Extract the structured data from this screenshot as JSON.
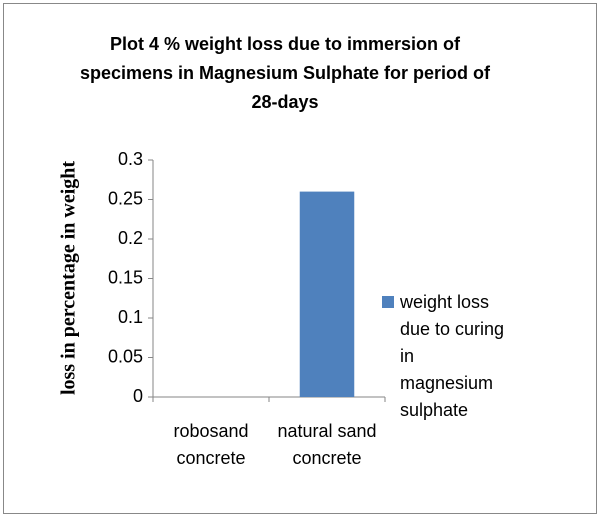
{
  "chart_data": {
    "type": "bar",
    "title": "Plot 4 % weight loss due to immersion of specimens in Magnesium Sulphate for period of 28-days",
    "y_label": "loss in percentage in weight",
    "categories": [
      "robosand concrete",
      "natural sand concrete"
    ],
    "series": [
      {
        "name": "weight loss due to curing in magnesium sulphate",
        "color": "#4f81bd",
        "values": [
          0,
          0.26
        ]
      }
    ],
    "ylim": [
      0,
      0.3
    ],
    "yticks": [
      0,
      0.05,
      0.1,
      0.15,
      0.2,
      0.25,
      0.3
    ],
    "grid": false,
    "legend": "right"
  }
}
